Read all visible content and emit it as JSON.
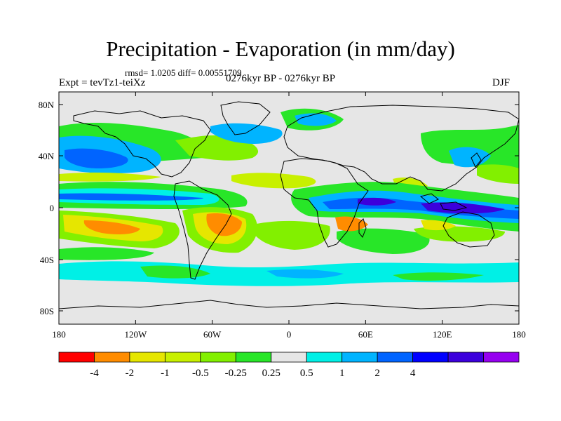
{
  "title": "Precipitation - Evaporation (in mm/day)",
  "stats": "rmsd= 1.0205 diff= 0.00551709",
  "experiment": "Expt = tevTz1-teiXz",
  "period": "0276kyr BP - 0276kyr BP",
  "season": "DJF",
  "lat_ticks": [
    "80N",
    "40N",
    "0",
    "40S",
    "80S"
  ],
  "lon_ticks": [
    "180",
    "120W",
    "60W",
    "0",
    "60E",
    "120E",
    "180"
  ],
  "colorbar": {
    "labels": [
      "-4",
      "-2",
      "-1",
      "-0.5",
      "-0.25",
      "0.25",
      "0.5",
      "1",
      "2",
      "4"
    ],
    "colors": [
      "#ff0000",
      "#ff8c00",
      "#e6e600",
      "#c8f000",
      "#82f000",
      "#28e628",
      "#e6e6e6",
      "#00f0e6",
      "#00b4ff",
      "#0064ff",
      "#0000ff",
      "#3c00dc",
      "#9600f0"
    ]
  },
  "palette": {
    "ocean_background": "#e6e6e6",
    "coast": "#000000"
  }
}
